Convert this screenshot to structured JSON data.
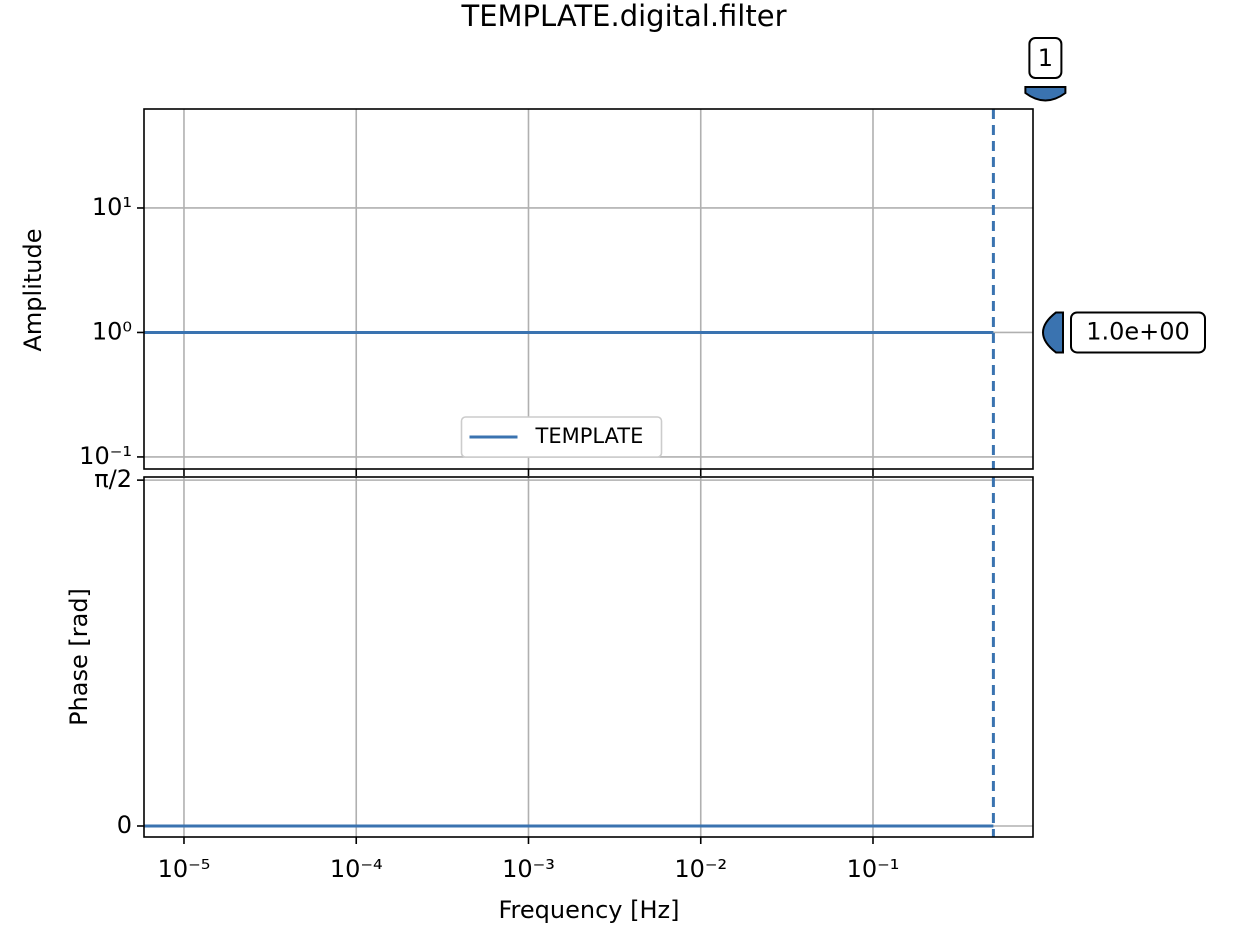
{
  "chart_data": [
    {
      "type": "line",
      "title": "TEMPLATE.digital.filter",
      "ylabel": "Amplitude",
      "x": [
        5.86e-06,
        0.5
      ],
      "series": [
        {
          "name": "TEMPLATE",
          "color": "#3a73b0",
          "values": [
            1,
            1
          ]
        }
      ],
      "xlim": [
        5.86e-06,
        0.849
      ],
      "xticks": [
        1e-05,
        0.0001,
        0.001,
        0.01,
        0.1
      ],
      "xlog": true,
      "ylim": [
        0.08,
        62.4
      ],
      "ylog": true,
      "yticks": [
        {
          "value": 10,
          "label": "10¹"
        },
        {
          "value": 1,
          "label": "10⁰"
        },
        {
          "value": 0.1,
          "label": "10⁻¹"
        }
      ],
      "grid": true,
      "legend": "lower center",
      "vline_x": 0.5,
      "x_marker_label": "1",
      "y_marker": {
        "value": 1,
        "label": "1.0e+00"
      }
    },
    {
      "type": "line",
      "ylabel": "Phase [rad]",
      "xlabel": "Frequency [Hz]",
      "x": [
        5.86e-06,
        0.5
      ],
      "series": [
        {
          "color": "#3a73b0",
          "values": [
            0,
            0
          ]
        }
      ],
      "xlim": [
        5.86e-06,
        0.849
      ],
      "xlog": true,
      "xticks": [
        {
          "value": 1e-05,
          "label": "10⁻⁵"
        },
        {
          "value": 0.0001,
          "label": "10⁻⁴"
        },
        {
          "value": 0.001,
          "label": "10⁻³"
        },
        {
          "value": 0.01,
          "label": "10⁻²"
        },
        {
          "value": 0.1,
          "label": "10⁻¹"
        }
      ],
      "ylim": [
        -0.05,
        1.585
      ],
      "yticks": [
        {
          "value": 1.5708,
          "label": "π/2"
        },
        0
      ],
      "grid": true,
      "vline_x": 0.5
    }
  ]
}
